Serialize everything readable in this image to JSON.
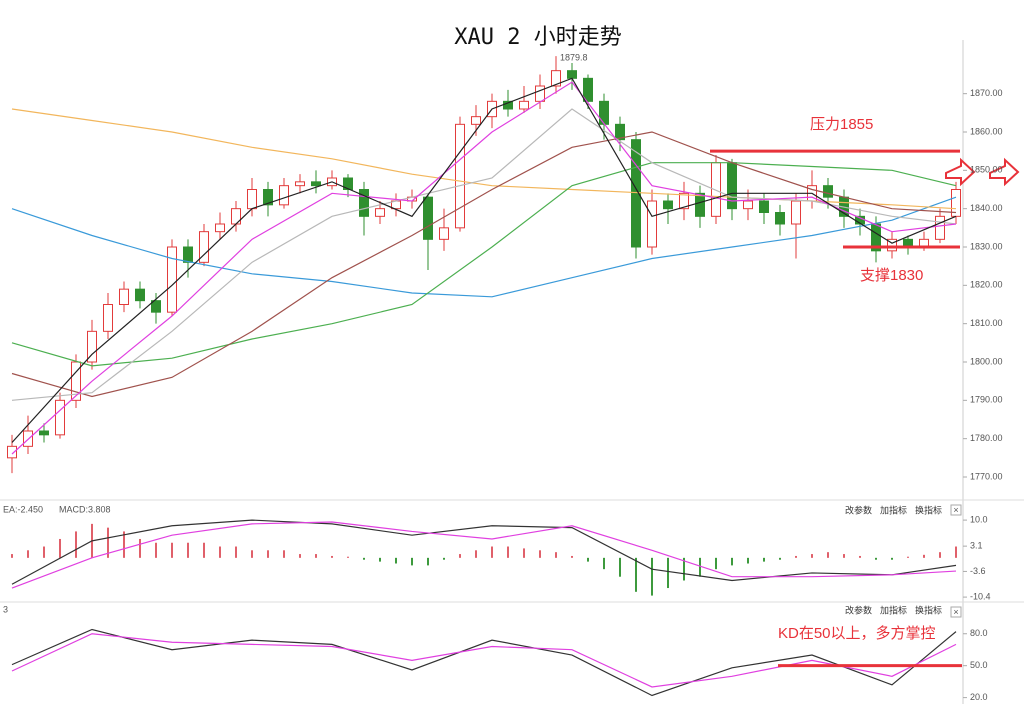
{
  "chart_data": [
    {
      "type": "candlestick",
      "title": "XAU 2 小时走势",
      "open": [
        1775,
        1778,
        1782,
        1781,
        1790,
        1800,
        1808,
        1815,
        1819,
        1816,
        1813,
        1830,
        1826,
        1834,
        1836,
        1840,
        1845,
        1841,
        1846,
        1847,
        1846,
        1848,
        1845,
        1838,
        1840,
        1842,
        1843,
        1832,
        1835,
        1862,
        1864,
        1868,
        1866,
        1868,
        1872,
        1876,
        1874,
        1868,
        1862,
        1858,
        1830,
        1842,
        1840,
        1844,
        1838,
        1852,
        1840,
        1842,
        1839,
        1836,
        1842,
        1846,
        1843,
        1838,
        1836,
        1829,
        1832,
        1830,
        1832,
        1838
      ],
      "high": [
        1781,
        1786,
        1784,
        1792,
        1802,
        1811,
        1818,
        1821,
        1821,
        1818,
        1832,
        1832,
        1836,
        1839,
        1842,
        1848,
        1847,
        1848,
        1849,
        1850,
        1850,
        1849,
        1847,
        1842,
        1844,
        1845,
        1844,
        1840,
        1864,
        1867,
        1870,
        1871,
        1872,
        1875,
        1879.8,
        1878,
        1875,
        1870,
        1864,
        1860,
        1845,
        1844,
        1847,
        1846,
        1854,
        1853,
        1845,
        1844,
        1841,
        1844,
        1850,
        1848,
        1845,
        1840,
        1838,
        1834,
        1833,
        1834,
        1840,
        1847
      ],
      "low": [
        1771,
        1776,
        1779,
        1780,
        1788,
        1798,
        1806,
        1813,
        1814,
        1810,
        1812,
        1822,
        1825,
        1832,
        1834,
        1838,
        1838,
        1840,
        1844,
        1844,
        1845,
        1843,
        1833,
        1836,
        1838,
        1840,
        1824,
        1829,
        1834,
        1859,
        1861,
        1864,
        1865,
        1866,
        1870,
        1871,
        1866,
        1858,
        1855,
        1827,
        1828,
        1836,
        1837,
        1835,
        1836,
        1837,
        1837,
        1836,
        1833,
        1827,
        1840,
        1840,
        1835,
        1833,
        1826,
        1827,
        1828,
        1829,
        1831,
        1836
      ],
      "close": [
        1778,
        1782,
        1781,
        1790,
        1800,
        1808,
        1815,
        1819,
        1816,
        1813,
        1830,
        1826,
        1834,
        1836,
        1840,
        1845,
        1841,
        1846,
        1847,
        1846,
        1848,
        1845,
        1838,
        1840,
        1842,
        1843,
        1832,
        1835,
        1862,
        1864,
        1868,
        1866,
        1868,
        1872,
        1876,
        1874,
        1868,
        1862,
        1858,
        1830,
        1842,
        1840,
        1844,
        1838,
        1852,
        1840,
        1842,
        1839,
        1836,
        1842,
        1846,
        1843,
        1838,
        1836,
        1829,
        1832,
        1830,
        1832,
        1838,
        1845
      ],
      "up_color": "#e23b3b",
      "down_color": "#2f8f2f",
      "lines": [
        {
          "color": "#3a9ad9",
          "x": [
            0,
            5,
            10,
            15,
            20,
            25,
            30,
            35,
            40,
            45,
            50,
            55,
            59
          ],
          "values": [
            1840,
            1833,
            1827,
            1823,
            1821,
            1818,
            1817,
            1822,
            1827,
            1830,
            1833,
            1837,
            1843
          ]
        },
        {
          "color": "#f2b65c",
          "x": [
            0,
            5,
            10,
            15,
            20,
            25,
            30,
            35,
            40,
            45,
            50,
            55,
            59
          ],
          "values": [
            1866,
            1863,
            1860,
            1856,
            1853,
            1849,
            1846,
            1845,
            1844,
            1843,
            1842,
            1841,
            1840
          ]
        },
        {
          "color": "#4caf50",
          "x": [
            0,
            5,
            10,
            15,
            20,
            25,
            30,
            35,
            40,
            45,
            50,
            55,
            59
          ],
          "values": [
            1805,
            1799,
            1801,
            1806,
            1810,
            1815,
            1830,
            1846,
            1852,
            1852,
            1851,
            1850,
            1846
          ]
        },
        {
          "color": "#a0524d",
          "x": [
            0,
            5,
            10,
            15,
            20,
            25,
            30,
            35,
            40,
            45,
            50,
            55,
            59
          ],
          "values": [
            1797,
            1791,
            1796,
            1808,
            1822,
            1833,
            1845,
            1856,
            1860,
            1852,
            1845,
            1840,
            1839
          ]
        },
        {
          "color": "#b8b8b8",
          "x": [
            0,
            5,
            10,
            15,
            20,
            25,
            30,
            35,
            40,
            45,
            50,
            55,
            59
          ],
          "values": [
            1790,
            1792,
            1808,
            1826,
            1838,
            1843,
            1848,
            1866,
            1852,
            1843,
            1842,
            1838,
            1836
          ]
        },
        {
          "color": "#e040e0",
          "x": [
            0,
            5,
            10,
            15,
            20,
            25,
            30,
            35,
            40,
            45,
            50,
            55,
            59
          ],
          "values": [
            1776,
            1795,
            1812,
            1832,
            1844,
            1842,
            1860,
            1873,
            1846,
            1842,
            1843,
            1834,
            1836
          ]
        },
        {
          "color": "#222222",
          "x": [
            0,
            5,
            10,
            15,
            20,
            25,
            30,
            35,
            40,
            45,
            50,
            55,
            59
          ],
          "values": [
            1779,
            1802,
            1820,
            1840,
            1847,
            1838,
            1866,
            1874,
            1838,
            1844,
            1844,
            1831,
            1838
          ]
        }
      ],
      "levels": [
        {
          "value": 1855,
          "label": "压力1855"
        },
        {
          "value": 1830,
          "label": "支撑1830"
        }
      ],
      "level_color": "#e8323a",
      "ylim": [
        1764,
        1884
      ],
      "yticks": [
        {
          "value": 1770,
          "label": "1770.00"
        },
        {
          "value": 1780,
          "label": "1780.00"
        },
        {
          "value": 1790,
          "label": "1790.00"
        },
        {
          "value": 1800,
          "label": "1800.00"
        },
        {
          "value": 1810,
          "label": "1810.00"
        },
        {
          "value": 1820,
          "label": "1820.00"
        },
        {
          "value": 1830,
          "label": "1830.00"
        },
        {
          "value": 1840,
          "label": "1840.00"
        },
        {
          "value": 1850,
          "label": "1850.00"
        },
        {
          "value": 1860,
          "label": "1860.00"
        },
        {
          "value": 1870,
          "label": "1870.00"
        }
      ]
    },
    {
      "type": "macd",
      "header": [
        "EA:-2.450",
        "MACD:3.808"
      ],
      "buttons": [
        "改参数",
        "加指标",
        "换指标"
      ],
      "histogram": [
        1,
        2,
        3,
        5,
        7,
        9,
        8,
        7,
        5,
        4,
        4,
        4,
        4,
        3,
        3,
        2,
        2,
        2,
        1,
        1,
        0.5,
        0.3,
        -0.5,
        -1,
        -1.5,
        -2,
        -2,
        -0.5,
        1,
        2,
        3,
        3,
        2.5,
        2,
        1.5,
        0.5,
        -1,
        -3,
        -5,
        -9,
        -10,
        -8,
        -6,
        -5,
        -3,
        -2,
        -1.5,
        -1,
        -0.5,
        0.5,
        1,
        1.5,
        1,
        0.5,
        -0.5,
        -0.5,
        0.3,
        0.8,
        1.5,
        3
      ],
      "up_color": "#e0606a",
      "down_color": "#3d9a3d",
      "lines": [
        {
          "color": "#333333",
          "x": [
            0,
            5,
            10,
            15,
            20,
            25,
            30,
            35,
            40,
            45,
            50,
            55,
            59
          ],
          "values": [
            -7,
            4.5,
            8.5,
            10,
            9,
            6,
            8.5,
            8,
            -3,
            -6,
            -4,
            -4.5,
            -2
          ]
        },
        {
          "color": "#e040e0",
          "x": [
            0,
            5,
            10,
            15,
            20,
            25,
            30,
            35,
            40,
            45,
            50,
            55,
            59
          ],
          "values": [
            -8,
            0,
            6,
            9,
            9.5,
            7,
            5,
            8.5,
            2,
            -5,
            -5,
            -4.5,
            -3.5
          ]
        }
      ],
      "ylim": [
        -11.7,
        14
      ],
      "yticks": [
        {
          "value": 10,
          "label": "10.0"
        },
        3.1,
        -3.6,
        -10.4
      ]
    },
    {
      "type": "kd",
      "header": [
        "3"
      ],
      "buttons": [
        "改参数",
        "加指标",
        "换指标"
      ],
      "lines": [
        {
          "color": "#333333",
          "x": [
            0,
            5,
            10,
            15,
            20,
            25,
            30,
            35,
            40,
            45,
            50,
            55,
            59
          ],
          "values": [
            51,
            84,
            65,
            74,
            70,
            46,
            74,
            60,
            22,
            48,
            60,
            32,
            82
          ]
        },
        {
          "color": "#e040e0",
          "x": [
            0,
            5,
            10,
            15,
            20,
            25,
            30,
            35,
            40,
            45,
            50,
            55,
            59
          ],
          "values": [
            45,
            80,
            72,
            70,
            68,
            55,
            68,
            65,
            30,
            40,
            55,
            40,
            70
          ]
        }
      ],
      "levels": [
        {
          "value": 50,
          "label": "KD在50以上，多方掌控"
        }
      ],
      "level_color": "#e8323a",
      "ylim": [
        14,
        107
      ],
      "yticks": [
        {
          "value": 80,
          "label": "80.0"
        },
        {
          "value": 50,
          "label": "50.0"
        },
        {
          "value": 20,
          "label": "20.0"
        }
      ]
    }
  ]
}
